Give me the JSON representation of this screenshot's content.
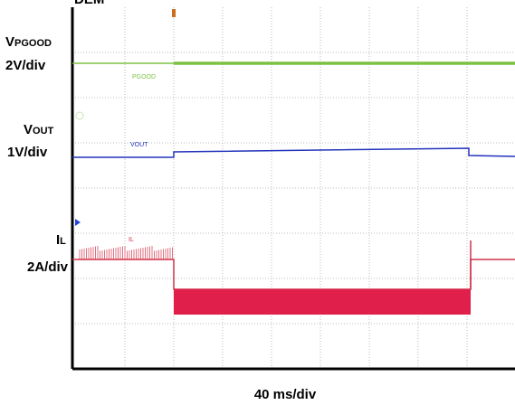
{
  "header": {
    "title": "DEM"
  },
  "channels": [
    {
      "symbol": "V",
      "sub": "PGOOD",
      "scale": "2V/div",
      "trace_label": "PGOOD"
    },
    {
      "symbol": "V",
      "sub": "OUT",
      "scale": "1V/div",
      "trace_label": "VOUT"
    },
    {
      "symbol": "I",
      "sub": "L",
      "scale": "2A/div",
      "trace_label": "IL"
    }
  ],
  "time_scale": "40 ms/div"
}
